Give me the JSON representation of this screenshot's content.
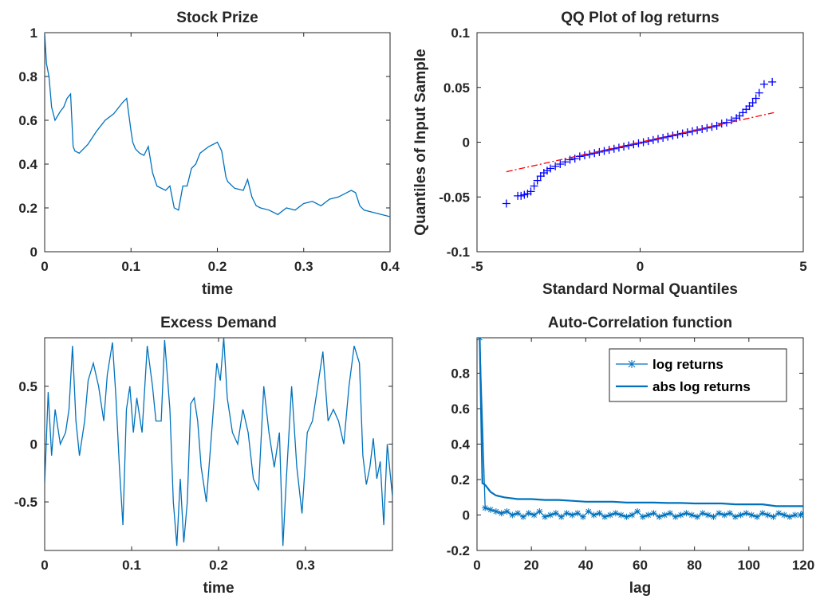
{
  "chart_data": [
    {
      "type": "line",
      "title": "Stock Prize",
      "xlabel": "time",
      "ylabel": "",
      "xlim": [
        0,
        0.4
      ],
      "ylim": [
        0,
        1
      ],
      "xticks": [
        "0",
        "0.1",
        "0.2",
        "0.3",
        "0.4"
      ],
      "yticks": [
        "0",
        "0.2",
        "0.4",
        "0.6",
        "0.8",
        "1"
      ],
      "series": [
        {
          "color": "#0072BD",
          "x": [
            0,
            0.002,
            0.005,
            0.008,
            0.012,
            0.018,
            0.022,
            0.026,
            0.03,
            0.033,
            0.035,
            0.04,
            0.05,
            0.06,
            0.07,
            0.08,
            0.09,
            0.095,
            0.1,
            0.102,
            0.105,
            0.11,
            0.115,
            0.12,
            0.125,
            0.13,
            0.14,
            0.145,
            0.15,
            0.155,
            0.16,
            0.165,
            0.17,
            0.175,
            0.18,
            0.19,
            0.2,
            0.205,
            0.21,
            0.212,
            0.22,
            0.23,
            0.235,
            0.24,
            0.245,
            0.25,
            0.26,
            0.27,
            0.28,
            0.29,
            0.3,
            0.31,
            0.32,
            0.33,
            0.34,
            0.35,
            0.355,
            0.36,
            0.365,
            0.37,
            0.38,
            0.39,
            0.4
          ],
          "y": [
            1.0,
            0.86,
            0.8,
            0.66,
            0.6,
            0.64,
            0.66,
            0.7,
            0.72,
            0.48,
            0.46,
            0.45,
            0.49,
            0.55,
            0.6,
            0.63,
            0.68,
            0.7,
            0.55,
            0.5,
            0.47,
            0.45,
            0.44,
            0.48,
            0.36,
            0.3,
            0.28,
            0.3,
            0.2,
            0.19,
            0.3,
            0.3,
            0.38,
            0.4,
            0.45,
            0.48,
            0.5,
            0.46,
            0.34,
            0.32,
            0.29,
            0.28,
            0.33,
            0.25,
            0.21,
            0.2,
            0.19,
            0.17,
            0.2,
            0.19,
            0.22,
            0.23,
            0.21,
            0.24,
            0.25,
            0.27,
            0.28,
            0.27,
            0.21,
            0.19,
            0.18,
            0.17,
            0.16
          ]
        }
      ]
    },
    {
      "type": "scatter",
      "title": "QQ Plot of log returns",
      "xlabel": "Standard Normal Quantiles",
      "ylabel": "Quantiles of Input Sample",
      "xlim": [
        -5,
        5
      ],
      "ylim": [
        -0.1,
        0.1
      ],
      "xticks": [
        "-5",
        "0",
        "5"
      ],
      "yticks": [
        "-0.1",
        "-0.05",
        "0",
        "0.05",
        "0.1"
      ],
      "series": [
        {
          "color": "#0000FF",
          "marker": "+",
          "x": [
            -4.1,
            -3.75,
            -3.65,
            -3.55,
            -3.45,
            -3.35,
            -3.25,
            -3.15,
            -3.05,
            -2.95,
            -2.85,
            -2.75,
            -2.6,
            -2.45,
            -2.3,
            -2.15,
            -2.0,
            -1.85,
            -1.7,
            -1.55,
            -1.4,
            -1.25,
            -1.1,
            -0.95,
            -0.8,
            -0.65,
            -0.5,
            -0.35,
            -0.2,
            -0.05,
            0.1,
            0.25,
            0.4,
            0.55,
            0.7,
            0.85,
            1.0,
            1.15,
            1.3,
            1.45,
            1.6,
            1.75,
            1.9,
            2.05,
            2.2,
            2.35,
            2.5,
            2.65,
            2.8,
            2.95,
            3.05,
            3.15,
            3.25,
            3.35,
            3.45,
            3.55,
            3.65,
            3.8,
            4.05
          ],
          "y": [
            -0.056,
            -0.049,
            -0.049,
            -0.048,
            -0.047,
            -0.045,
            -0.04,
            -0.035,
            -0.031,
            -0.028,
            -0.026,
            -0.024,
            -0.022,
            -0.02,
            -0.018,
            -0.016,
            -0.015,
            -0.013,
            -0.012,
            -0.011,
            -0.01,
            -0.009,
            -0.008,
            -0.007,
            -0.006,
            -0.005,
            -0.004,
            -0.003,
            -0.002,
            -0.001,
            0.0,
            0.001,
            0.002,
            0.003,
            0.004,
            0.005,
            0.006,
            0.007,
            0.008,
            0.009,
            0.01,
            0.011,
            0.012,
            0.013,
            0.014,
            0.015,
            0.017,
            0.018,
            0.02,
            0.022,
            0.024,
            0.027,
            0.03,
            0.033,
            0.036,
            0.04,
            0.045,
            0.053,
            0.055
          ]
        },
        {
          "color": "#FF0000",
          "style": "dash-dot",
          "x": [
            -4.1,
            4.1
          ],
          "y": [
            -0.027,
            0.027
          ]
        }
      ]
    },
    {
      "type": "line",
      "title": "Excess Demand",
      "xlabel": "time",
      "ylabel": "",
      "xlim": [
        0,
        0.4
      ],
      "ylim": [
        -0.92,
        0.92
      ],
      "xticks": [
        "0",
        "0.1",
        "0.2",
        "0.3"
      ],
      "yticks": [
        "-0.5",
        "0",
        "0.5"
      ],
      "series": [
        {
          "color": "#0072BD",
          "x": [
            0,
            0.004,
            0.008,
            0.012,
            0.018,
            0.024,
            0.028,
            0.032,
            0.036,
            0.04,
            0.046,
            0.05,
            0.056,
            0.062,
            0.068,
            0.072,
            0.078,
            0.082,
            0.086,
            0.09,
            0.094,
            0.098,
            0.102,
            0.106,
            0.112,
            0.118,
            0.124,
            0.128,
            0.134,
            0.138,
            0.144,
            0.148,
            0.152,
            0.156,
            0.16,
            0.164,
            0.168,
            0.172,
            0.176,
            0.18,
            0.186,
            0.192,
            0.198,
            0.202,
            0.206,
            0.21,
            0.216,
            0.222,
            0.228,
            0.234,
            0.24,
            0.246,
            0.252,
            0.258,
            0.264,
            0.27,
            0.274,
            0.278,
            0.284,
            0.29,
            0.296,
            0.302,
            0.308,
            0.314,
            0.32,
            0.326,
            0.332,
            0.338,
            0.344,
            0.35,
            0.356,
            0.362,
            0.366,
            0.37,
            0.374,
            0.378,
            0.382,
            0.386,
            0.39,
            0.394,
            0.398,
            0.4
          ],
          "y": [
            -0.35,
            0.45,
            -0.1,
            0.3,
            0.0,
            0.1,
            0.3,
            0.85,
            0.2,
            -0.1,
            0.2,
            0.55,
            0.7,
            0.5,
            0.2,
            0.6,
            0.88,
            0.4,
            -0.2,
            -0.7,
            0.3,
            0.5,
            0.1,
            0.4,
            0.1,
            0.85,
            0.5,
            0.2,
            0.2,
            0.9,
            0.3,
            -0.5,
            -0.88,
            -0.3,
            -0.85,
            -0.5,
            0.35,
            0.4,
            0.2,
            -0.2,
            -0.5,
            0.1,
            0.7,
            0.55,
            0.92,
            0.4,
            0.1,
            0.0,
            0.3,
            0.1,
            -0.3,
            -0.4,
            0.5,
            0.1,
            -0.2,
            0.1,
            -0.88,
            -0.3,
            0.5,
            -0.2,
            -0.6,
            0.1,
            0.2,
            0.5,
            0.8,
            0.2,
            0.3,
            0.2,
            0.0,
            0.5,
            0.85,
            0.7,
            -0.1,
            -0.35,
            -0.2,
            0.05,
            -0.3,
            -0.15,
            -0.7,
            0.0,
            -0.3,
            -0.45
          ]
        }
      ]
    },
    {
      "type": "line",
      "title": "Auto-Correlation function",
      "xlabel": "lag",
      "ylabel": "",
      "xlim": [
        0,
        120
      ],
      "ylim": [
        -0.2,
        1.0
      ],
      "xticks": [
        "0",
        "20",
        "40",
        "60",
        "80",
        "100",
        "120"
      ],
      "yticks": [
        "-0.2",
        "0",
        "0.2",
        "0.4",
        "0.6",
        "0.8"
      ],
      "legend": "top-right",
      "series": [
        {
          "name": "log returns",
          "color": "#0072BD",
          "marker": "*",
          "x": [
            1,
            3,
            5,
            7,
            9,
            11,
            13,
            15,
            17,
            19,
            21,
            23,
            25,
            27,
            29,
            31,
            33,
            35,
            37,
            39,
            41,
            43,
            45,
            47,
            49,
            51,
            53,
            55,
            57,
            59,
            61,
            63,
            65,
            67,
            69,
            71,
            73,
            75,
            77,
            79,
            81,
            83,
            85,
            87,
            89,
            91,
            93,
            95,
            97,
            99,
            101,
            103,
            105,
            107,
            109,
            111,
            113,
            115,
            117,
            119,
            120
          ],
          "y": [
            1.0,
            0.04,
            0.03,
            0.02,
            0.01,
            0.02,
            0.0,
            0.01,
            -0.01,
            0.01,
            0.0,
            0.02,
            -0.01,
            0.0,
            0.01,
            -0.01,
            0.01,
            0.0,
            0.01,
            -0.01,
            0.02,
            0.0,
            0.01,
            -0.01,
            0.0,
            0.01,
            0.0,
            -0.01,
            0.0,
            0.02,
            -0.01,
            0.0,
            0.01,
            -0.01,
            0.0,
            0.01,
            -0.01,
            0.0,
            0.01,
            0.0,
            -0.01,
            0.01,
            0.0,
            -0.01,
            0.01,
            0.0,
            0.01,
            -0.01,
            0.0,
            0.01,
            0.0,
            -0.01,
            0.01,
            0.0,
            -0.01,
            0.01,
            0.0,
            -0.01,
            0.0,
            0.0,
            0.01
          ]
        },
        {
          "name": "abs log returns",
          "color": "#0072BD",
          "x": [
            1,
            2,
            3,
            4,
            5,
            7,
            10,
            15,
            20,
            25,
            30,
            35,
            40,
            45,
            50,
            55,
            60,
            65,
            70,
            75,
            80,
            85,
            90,
            95,
            100,
            105,
            110,
            115,
            120
          ],
          "y": [
            1.0,
            0.18,
            0.17,
            0.15,
            0.13,
            0.11,
            0.1,
            0.09,
            0.09,
            0.085,
            0.085,
            0.08,
            0.075,
            0.075,
            0.075,
            0.07,
            0.07,
            0.07,
            0.068,
            0.068,
            0.065,
            0.065,
            0.065,
            0.06,
            0.06,
            0.06,
            0.05,
            0.05,
            0.05
          ]
        }
      ]
    }
  ]
}
